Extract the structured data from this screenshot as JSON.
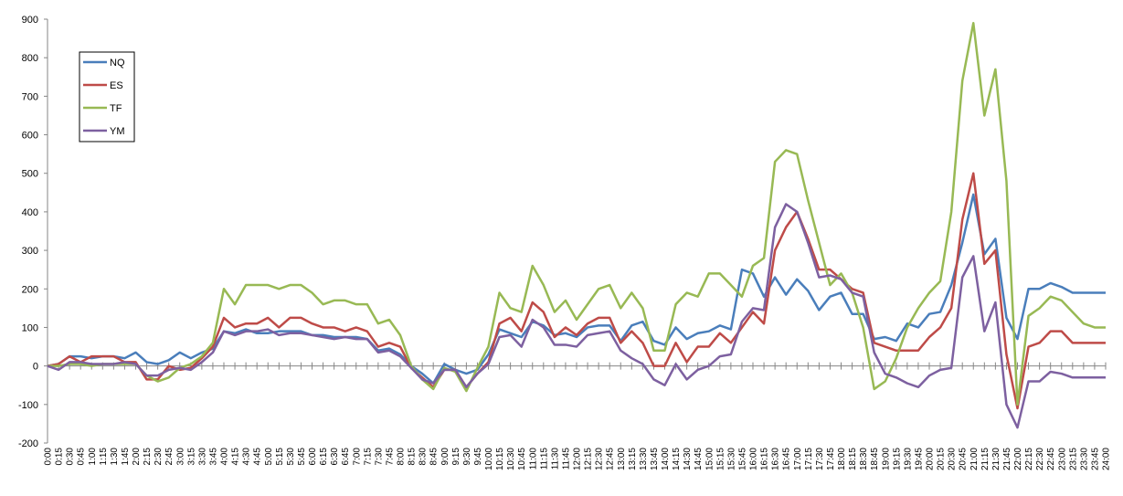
{
  "chart_data": {
    "type": "line",
    "categories": [
      "0:00",
      "0:15",
      "0:30",
      "0:45",
      "1:00",
      "1:15",
      "1:30",
      "1:45",
      "2:00",
      "2:15",
      "2:30",
      "2:45",
      "3:00",
      "3:15",
      "3:30",
      "3:45",
      "4:00",
      "4:15",
      "4:30",
      "4:45",
      "5:00",
      "5:15",
      "5:30",
      "5:45",
      "6:00",
      "6:15",
      "6:30",
      "6:45",
      "7:00",
      "7:15",
      "7:30",
      "7:45",
      "8:00",
      "8:15",
      "8:30",
      "8:45",
      "9:00",
      "9:15",
      "9:30",
      "9:45",
      "10:00",
      "10:15",
      "10:30",
      "10:45",
      "11:00",
      "11:15",
      "11:30",
      "11:45",
      "12:00",
      "12:15",
      "12:30",
      "12:45",
      "13:00",
      "13:15",
      "13:30",
      "13:45",
      "14:00",
      "14:15",
      "14:30",
      "14:45",
      "15:00",
      "15:15",
      "15:30",
      "15:45",
      "16:00",
      "16:15",
      "16:30",
      "16:45",
      "17:00",
      "17:15",
      "17:30",
      "17:45",
      "18:00",
      "18:15",
      "18:30",
      "18:45",
      "19:00",
      "19:15",
      "19:30",
      "19:45",
      "20:00",
      "20:15",
      "20:30",
      "20:45",
      "21:00",
      "21:15",
      "21:30",
      "21:45",
      "22:00",
      "22:15",
      "22:30",
      "22:45",
      "23:00",
      "23:15",
      "23:30",
      "23:45",
      "24:00"
    ],
    "series": [
      {
        "name": "NQ",
        "color": "#4a7ebb",
        "values": [
          0,
          5,
          25,
          25,
          20,
          25,
          25,
          20,
          35,
          10,
          5,
          15,
          35,
          20,
          35,
          45,
          90,
          85,
          95,
          85,
          85,
          90,
          90,
          90,
          80,
          80,
          75,
          75,
          75,
          70,
          40,
          45,
          30,
          0,
          -20,
          -45,
          5,
          -10,
          -20,
          -10,
          30,
          95,
          85,
          75,
          115,
          105,
          80,
          85,
          75,
          100,
          105,
          105,
          65,
          105,
          115,
          65,
          55,
          100,
          70,
          85,
          90,
          105,
          95,
          250,
          240,
          180,
          230,
          185,
          225,
          195,
          145,
          180,
          190,
          135,
          135,
          70,
          75,
          65,
          110,
          100,
          135,
          140,
          210,
          320,
          445,
          290,
          330,
          125,
          70,
          200,
          200,
          215,
          205,
          190,
          190,
          190,
          190
        ]
      },
      {
        "name": "ES",
        "color": "#be4b48",
        "values": [
          0,
          5,
          25,
          10,
          25,
          25,
          25,
          10,
          10,
          -35,
          -35,
          0,
          -10,
          -5,
          20,
          50,
          125,
          100,
          110,
          110,
          125,
          100,
          125,
          125,
          110,
          100,
          100,
          90,
          100,
          90,
          50,
          60,
          50,
          -5,
          -30,
          -55,
          -10,
          -10,
          -55,
          -20,
          10,
          110,
          125,
          90,
          165,
          140,
          75,
          100,
          80,
          110,
          125,
          125,
          60,
          90,
          60,
          0,
          0,
          60,
          10,
          50,
          50,
          85,
          60,
          100,
          140,
          110,
          300,
          360,
          400,
          330,
          250,
          250,
          225,
          200,
          190,
          60,
          50,
          40,
          40,
          40,
          75,
          100,
          150,
          380,
          500,
          265,
          300,
          30,
          -110,
          50,
          60,
          90,
          90,
          60,
          60,
          60,
          60
        ]
      },
      {
        "name": "TF",
        "color": "#98b954",
        "values": [
          0,
          0,
          5,
          5,
          0,
          5,
          5,
          5,
          5,
          -25,
          -40,
          -30,
          -5,
          5,
          25,
          60,
          200,
          160,
          210,
          210,
          210,
          200,
          210,
          210,
          190,
          160,
          170,
          170,
          160,
          160,
          110,
          120,
          80,
          0,
          -35,
          -60,
          -5,
          -15,
          -65,
          -5,
          50,
          190,
          150,
          140,
          260,
          210,
          140,
          170,
          120,
          160,
          200,
          210,
          150,
          190,
          150,
          40,
          40,
          160,
          190,
          180,
          240,
          240,
          210,
          180,
          260,
          280,
          530,
          560,
          550,
          430,
          320,
          210,
          240,
          190,
          100,
          -60,
          -40,
          20,
          100,
          150,
          190,
          220,
          400,
          740,
          890,
          650,
          770,
          480,
          -100,
          130,
          150,
          180,
          170,
          140,
          110,
          100,
          100
        ]
      },
      {
        "name": "YM",
        "color": "#7d60a0",
        "values": [
          0,
          -10,
          10,
          10,
          5,
          5,
          5,
          10,
          5,
          -25,
          -25,
          -10,
          -5,
          -10,
          10,
          35,
          90,
          80,
          90,
          90,
          95,
          80,
          85,
          85,
          80,
          75,
          70,
          75,
          70,
          70,
          35,
          40,
          25,
          -5,
          -35,
          -45,
          -10,
          -10,
          -55,
          -20,
          5,
          75,
          80,
          50,
          120,
          100,
          55,
          55,
          50,
          80,
          85,
          90,
          40,
          20,
          5,
          -35,
          -50,
          5,
          -35,
          -10,
          0,
          25,
          30,
          115,
          150,
          145,
          360,
          420,
          400,
          320,
          230,
          235,
          225,
          190,
          180,
          35,
          -20,
          -30,
          -45,
          -55,
          -25,
          -10,
          -5,
          230,
          285,
          90,
          165,
          -100,
          -160,
          -40,
          -40,
          -15,
          -20,
          -30,
          -30,
          -30,
          -30
        ]
      }
    ],
    "ylim": [
      -200,
      900
    ],
    "yticks": [
      -200,
      -100,
      0,
      100,
      200,
      300,
      400,
      500,
      600,
      700,
      800,
      900
    ],
    "grid": false,
    "legend": "upper left"
  }
}
